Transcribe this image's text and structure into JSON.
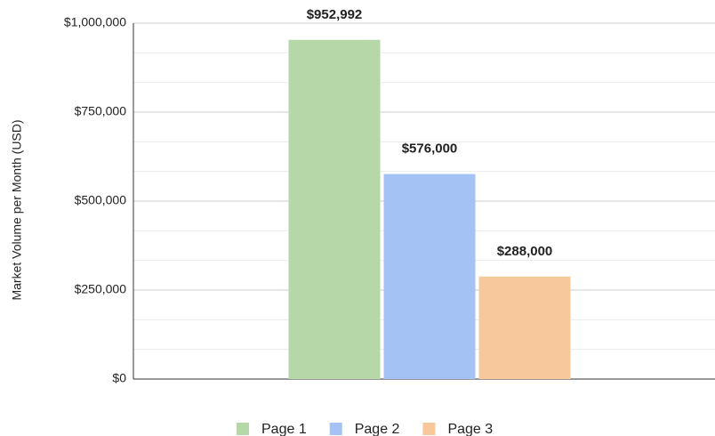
{
  "chart_data": {
    "type": "bar",
    "y_label": "Market Volume per Month (USD)",
    "categories": [
      null
    ],
    "series": [
      {
        "name": "Page 1",
        "color": "#b6d7a8",
        "values": [
          952992
        ],
        "value_labels": [
          "$952,992"
        ]
      },
      {
        "name": "Page 2",
        "color": "#a4c2f4",
        "values": [
          576000
        ],
        "value_labels": [
          "$576,000"
        ]
      },
      {
        "name": "Page 3",
        "color": "#f6c89b",
        "values": [
          288000
        ],
        "value_labels": [
          "$288,000"
        ]
      }
    ],
    "ylim": [
      0,
      1000000
    ],
    "yticks": [
      {
        "value": 0,
        "label": "$0"
      },
      {
        "value": 250000,
        "label": "$250,000"
      },
      {
        "value": 500000,
        "label": "$500,000"
      },
      {
        "value": 750000,
        "label": "$750,000"
      },
      {
        "value": 1000000,
        "label": "$1,000,000"
      }
    ],
    "minor_yticks": [
      83333,
      166667,
      333333,
      416667,
      583333,
      666667,
      833333,
      916667
    ],
    "grid": true,
    "legend": "bottom"
  }
}
